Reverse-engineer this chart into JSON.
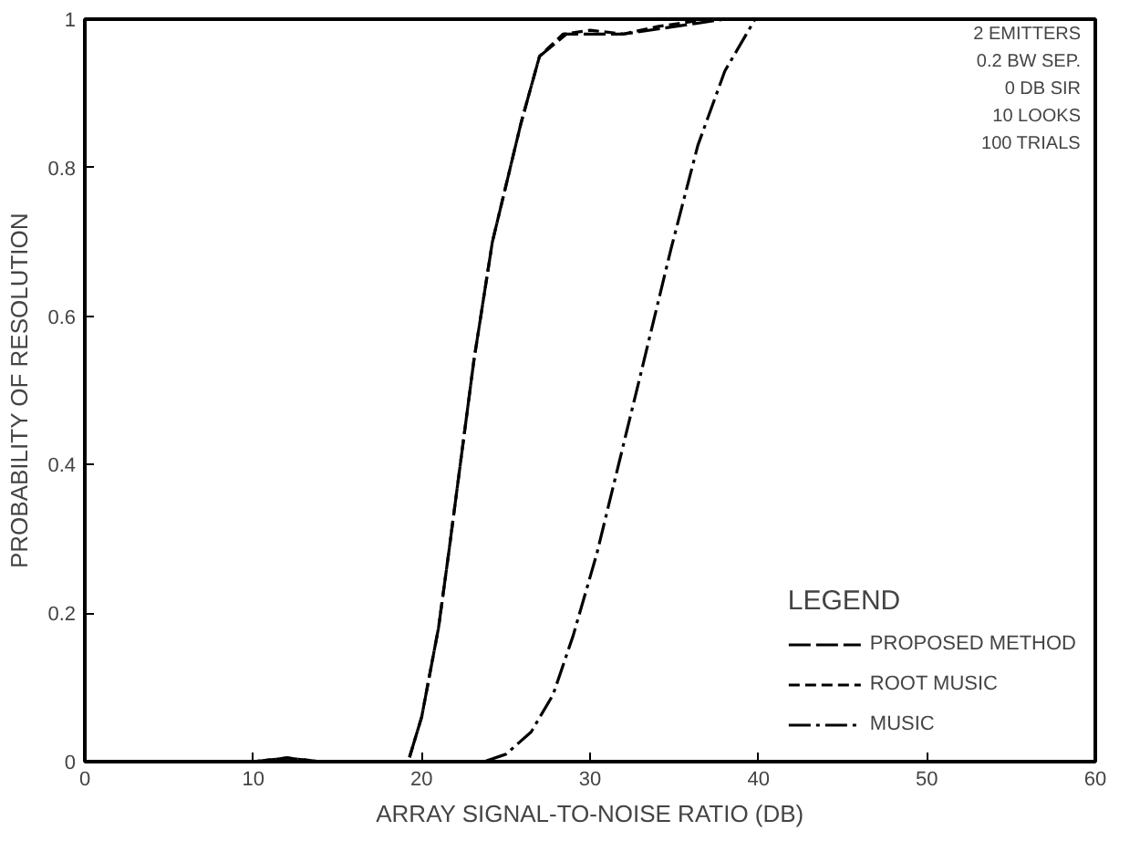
{
  "chart_data": {
    "type": "line",
    "xlabel": "ARRAY SIGNAL-TO-NOISE RATIO (DB)",
    "ylabel": "PROBABILITY OF RESOLUTION",
    "legend_title": "LEGEND",
    "annotations": [
      "2 EMITTERS",
      "0.2 BW SEP.",
      "0 DB SIR",
      "10 LOOKS",
      "100 TRIALS"
    ],
    "xlim": [
      0,
      60
    ],
    "ylim": [
      0,
      1
    ],
    "xticks": [
      0,
      10,
      20,
      30,
      40,
      50,
      60
    ],
    "yticks": [
      0,
      0.2,
      0.4,
      0.6,
      0.8,
      1
    ],
    "grid": false,
    "legend": "bottom right",
    "series": [
      {
        "name": "PROPOSED METHOD",
        "color": "#000000",
        "line_style": "dashed",
        "x": [
          0,
          10,
          12,
          14,
          19.2,
          20,
          21,
          21.6,
          23.1,
          24.2,
          25.9,
          27,
          28.6,
          30,
          32,
          35,
          38,
          60
        ],
        "values": [
          0,
          0,
          0.005,
          0,
          0,
          0.06,
          0.18,
          0.28,
          0.54,
          0.7,
          0.86,
          0.95,
          0.98,
          0.98,
          0.98,
          0.99,
          1,
          1
        ]
      },
      {
        "name": "ROOT MUSIC",
        "color": "#000000",
        "line_style": "dashed",
        "x": [
          0,
          10,
          12,
          14,
          19.2,
          20,
          21,
          21.6,
          23.1,
          24.2,
          25.9,
          27,
          28.4,
          30,
          32,
          34,
          37,
          60
        ],
        "values": [
          0,
          0,
          0.005,
          0,
          0,
          0.06,
          0.18,
          0.28,
          0.54,
          0.7,
          0.86,
          0.95,
          0.98,
          0.985,
          0.98,
          0.99,
          1,
          1
        ]
      },
      {
        "name": "MUSIC",
        "color": "#000000",
        "line_style": "dashdot",
        "x": [
          0,
          23.7,
          25,
          26.5,
          27.8,
          29,
          30.4,
          31.8,
          33.2,
          34.8,
          36.4,
          38,
          39.8,
          60
        ],
        "values": [
          0,
          0,
          0.01,
          0.04,
          0.09,
          0.17,
          0.28,
          0.41,
          0.54,
          0.69,
          0.83,
          0.93,
          1,
          1
        ]
      }
    ]
  }
}
